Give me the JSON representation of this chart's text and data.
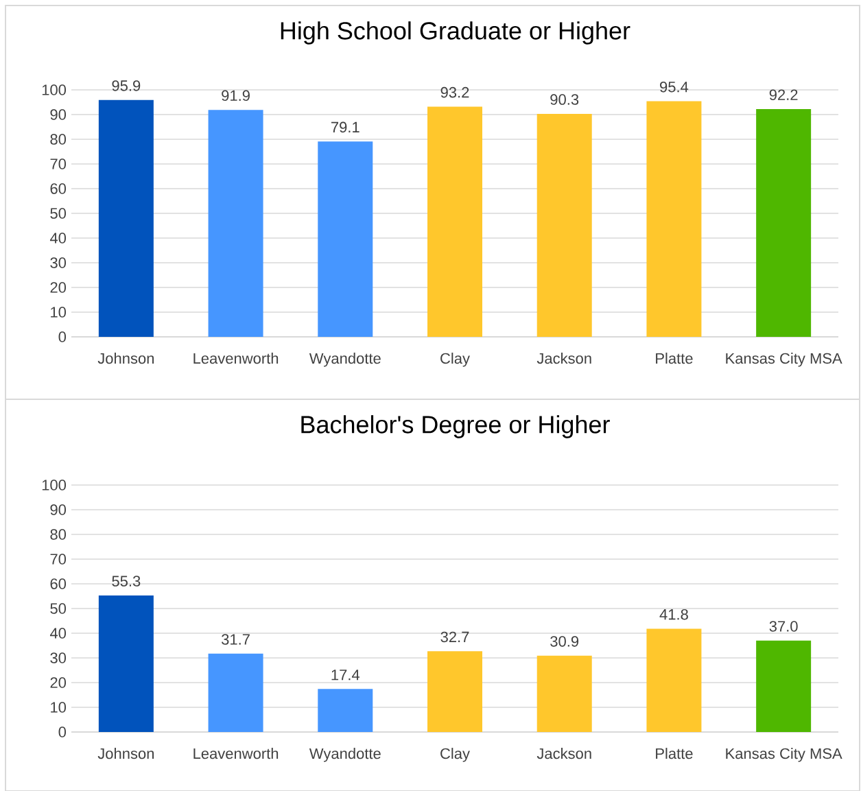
{
  "chart_data": [
    {
      "type": "bar",
      "title": "High School Graduate or Higher",
      "categories": [
        "Johnson",
        "Leavenworth",
        "Wyandotte",
        "Clay",
        "Jackson",
        "Platte",
        "Kansas City MSA"
      ],
      "values": [
        95.9,
        91.9,
        79.1,
        93.2,
        90.3,
        95.4,
        92.2
      ],
      "value_labels": [
        "95.9",
        "91.9",
        "79.1",
        "93.2",
        "90.3",
        "95.4",
        "92.2"
      ],
      "colors": [
        "#0153bc",
        "#4696ff",
        "#4696ff",
        "#ffc72c",
        "#ffc72c",
        "#ffc72c",
        "#4fb700"
      ],
      "ylim": [
        0,
        100
      ],
      "yticks": [
        0,
        10,
        20,
        30,
        40,
        50,
        60,
        70,
        80,
        90,
        100
      ],
      "grid": "y"
    },
    {
      "type": "bar",
      "title": "Bachelor's Degree or Higher",
      "categories": [
        "Johnson",
        "Leavenworth",
        "Wyandotte",
        "Clay",
        "Jackson",
        "Platte",
        "Kansas City MSA"
      ],
      "values": [
        55.3,
        31.7,
        17.4,
        32.7,
        30.9,
        41.8,
        37.0
      ],
      "value_labels": [
        "55.3",
        "31.7",
        "17.4",
        "32.7",
        "30.9",
        "41.8",
        "37.0"
      ],
      "colors": [
        "#0153bc",
        "#4696ff",
        "#4696ff",
        "#ffc72c",
        "#ffc72c",
        "#ffc72c",
        "#4fb700"
      ],
      "ylim": [
        0,
        100
      ],
      "yticks": [
        0,
        10,
        20,
        30,
        40,
        50,
        60,
        70,
        80,
        90,
        100
      ],
      "grid": "y"
    }
  ]
}
